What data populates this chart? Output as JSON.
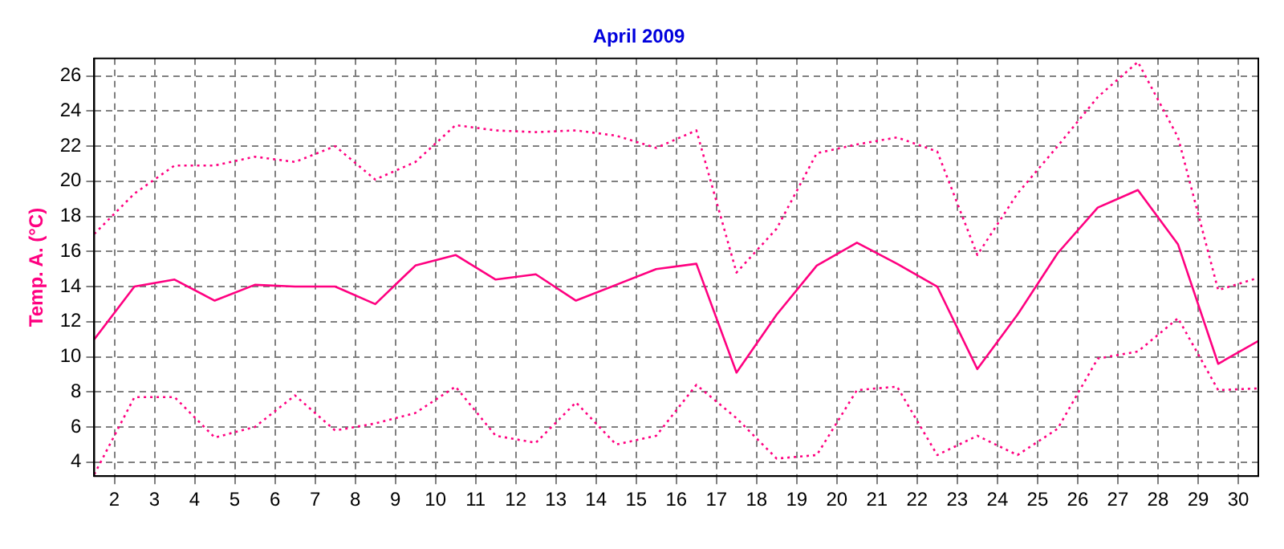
{
  "chart_data": {
    "type": "line",
    "title": "April 2009",
    "ylabel": "Temp. A. (°C)",
    "x": [
      1.5,
      2.5,
      3.5,
      4.5,
      5.5,
      6.5,
      7.5,
      8.5,
      9.5,
      10.5,
      11.5,
      12.5,
      13.5,
      14.5,
      15.5,
      16.5,
      17.5,
      18.5,
      19.5,
      20.5,
      21.5,
      22.5,
      23.5,
      24.5,
      25.5,
      26.5,
      27.5,
      28.5,
      29.5,
      30.5
    ],
    "series": [
      {
        "color": "#ff0080",
        "line_style": "dotted",
        "values": [
          17.0,
          19.3,
          20.9,
          20.9,
          21.4,
          21.1,
          22.0,
          20.1,
          21.1,
          23.2,
          22.9,
          22.8,
          22.9,
          22.6,
          21.9,
          22.9,
          14.8,
          17.3,
          21.6,
          22.1,
          22.5,
          21.7,
          15.8,
          19.3,
          22.0,
          24.8,
          26.8,
          22.5,
          13.8,
          14.5
        ]
      },
      {
        "color": "#ff0080",
        "line_style": "solid",
        "values": [
          11.0,
          14.0,
          14.4,
          13.2,
          14.1,
          14.0,
          14.0,
          13.0,
          15.2,
          15.8,
          14.4,
          14.7,
          13.2,
          14.1,
          15.0,
          15.3,
          9.1,
          12.4,
          15.2,
          16.5,
          15.3,
          14.0,
          9.3,
          12.4,
          15.9,
          18.5,
          19.5,
          16.4,
          9.6,
          10.9
        ]
      },
      {
        "color": "#ff0080",
        "line_style": "dotted",
        "values": [
          3.3,
          7.7,
          7.7,
          5.4,
          6.0,
          7.8,
          5.8,
          6.2,
          6.8,
          8.3,
          5.5,
          5.1,
          7.4,
          5.0,
          5.5,
          8.4,
          6.5,
          4.2,
          4.4,
          8.1,
          8.3,
          4.4,
          5.5,
          4.4,
          5.9,
          9.9,
          10.3,
          12.2,
          8.1,
          8.2
        ]
      }
    ],
    "xlim": [
      1.5,
      30.5
    ],
    "xticks": [
      2,
      3,
      4,
      5,
      6,
      7,
      8,
      9,
      10,
      11,
      12,
      13,
      14,
      15,
      16,
      17,
      18,
      19,
      20,
      21,
      22,
      23,
      24,
      25,
      26,
      27,
      28,
      29,
      30
    ],
    "ylim": [
      3.2,
      27
    ],
    "yticks": [
      4,
      6,
      8,
      10,
      12,
      14,
      16,
      18,
      20,
      22,
      24,
      26
    ],
    "grid": true,
    "legend": false,
    "marker": "none"
  }
}
